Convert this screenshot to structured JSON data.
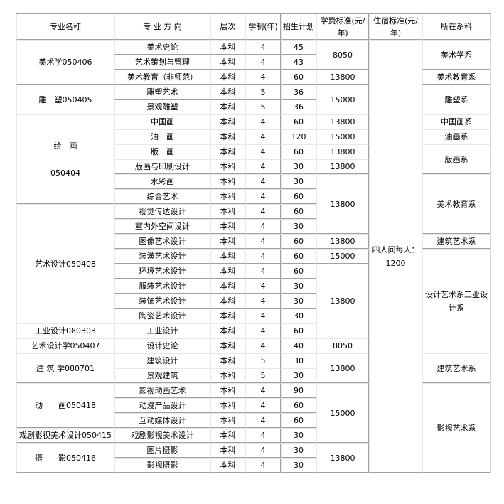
{
  "headers": [
    "专业名称",
    "专 业 方 向",
    "层次",
    "学制(年)",
    "招生计划",
    "学费标准(元/年)",
    "住宿标准(元/年)",
    "所在系科"
  ],
  "rows": [
    [
      {
        "t": "美术学050406",
        "rs": 3
      },
      {
        "t": "美术史论"
      },
      {
        "t": "本科"
      },
      {
        "t": "4"
      },
      {
        "t": "45"
      },
      {
        "t": "8050",
        "rs": 2
      },
      {
        "t": "四人间每人：\n1200",
        "rs": 29
      },
      {
        "t": "美术学系",
        "rs": 2
      }
    ],
    [
      {
        "t": "艺术策划与管理"
      },
      {
        "t": "本科"
      },
      {
        "t": "4"
      },
      {
        "t": "43"
      }
    ],
    [
      {
        "t": "美术教育（非师范）"
      },
      {
        "t": "本科"
      },
      {
        "t": "4"
      },
      {
        "t": "60"
      },
      {
        "t": "13800"
      },
      {
        "t": "美术教育系"
      }
    ],
    [
      {
        "t": "雕　塑050405",
        "rs": 2
      },
      {
        "t": "雕塑艺术"
      },
      {
        "t": "本科"
      },
      {
        "t": "5"
      },
      {
        "t": "36"
      },
      {
        "t": "15000",
        "rs": 2
      },
      {
        "t": "雕塑系",
        "rs": 2
      }
    ],
    [
      {
        "t": "景观雕塑"
      },
      {
        "t": "本科"
      },
      {
        "t": "5"
      },
      {
        "t": "36"
      }
    ],
    [
      {
        "t": "绘　画\n\n050404",
        "rs": 6
      },
      {
        "t": "中国画"
      },
      {
        "t": "本科"
      },
      {
        "t": "4"
      },
      {
        "t": "60"
      },
      {
        "t": "13800"
      },
      {
        "t": "中国画系"
      }
    ],
    [
      {
        "t": "油　画"
      },
      {
        "t": "本科"
      },
      {
        "t": "4"
      },
      {
        "t": "120"
      },
      {
        "t": "15000"
      },
      {
        "t": "油画系"
      }
    ],
    [
      {
        "t": "版　画"
      },
      {
        "t": "本科"
      },
      {
        "t": "4"
      },
      {
        "t": "60"
      },
      {
        "t": "13800"
      },
      {
        "t": "版画系",
        "rs": 2
      }
    ],
    [
      {
        "t": "版画与印刷设计"
      },
      {
        "t": "本科"
      },
      {
        "t": "4"
      },
      {
        "t": "30"
      },
      {
        "t": "13800"
      }
    ],
    [
      {
        "t": "水彩画"
      },
      {
        "t": "本科"
      },
      {
        "t": "4"
      },
      {
        "t": "30"
      },
      {
        "t": "13800",
        "rs": 4
      },
      {
        "t": "美术教育系",
        "rs": 4
      }
    ],
    [
      {
        "t": "综合艺术"
      },
      {
        "t": "本科"
      },
      {
        "t": "4"
      },
      {
        "t": "60"
      }
    ],
    [
      {
        "t": "艺术设计050408",
        "rs": 8
      },
      {
        "t": "视觉传达设计"
      },
      {
        "t": "本科"
      },
      {
        "t": "4"
      },
      {
        "t": "60"
      }
    ],
    [
      {
        "t": "室内外空间设计"
      },
      {
        "t": "本科"
      },
      {
        "t": "4"
      },
      {
        "t": "30"
      }
    ],
    [
      {
        "t": "图像艺术设计"
      },
      {
        "t": "本科"
      },
      {
        "t": "4"
      },
      {
        "t": "60"
      },
      {
        "t": "13800"
      },
      {
        "t": "建筑艺术系"
      }
    ],
    [
      {
        "t": "装潢艺术设计"
      },
      {
        "t": "本科"
      },
      {
        "t": "4"
      },
      {
        "t": "60"
      },
      {
        "t": "15000"
      },
      {
        "t": "设计艺术系工业设计系",
        "rs": 7
      }
    ],
    [
      {
        "t": "环境艺术设计"
      },
      {
        "t": "本科"
      },
      {
        "t": "4"
      },
      {
        "t": "60"
      },
      {
        "t": "13800",
        "rs": 5
      }
    ],
    [
      {
        "t": "服装艺术设计"
      },
      {
        "t": "本科"
      },
      {
        "t": "4"
      },
      {
        "t": "30"
      }
    ],
    [
      {
        "t": "装饰艺术设计"
      },
      {
        "t": "本科"
      },
      {
        "t": "4"
      },
      {
        "t": "30"
      }
    ],
    [
      {
        "t": "陶瓷艺术设计"
      },
      {
        "t": "本科"
      },
      {
        "t": "4"
      },
      {
        "t": "30"
      }
    ],
    [
      {
        "t": "工业设计080303"
      },
      {
        "t": "工业设计"
      },
      {
        "t": "本科"
      },
      {
        "t": "4"
      },
      {
        "t": "60"
      }
    ],
    [
      {
        "t": "艺术设计学050407"
      },
      {
        "t": "设计史论"
      },
      {
        "t": "本科"
      },
      {
        "t": "4"
      },
      {
        "t": "40"
      },
      {
        "t": "8050"
      }
    ],
    [
      {
        "t": "建 筑 学080701",
        "rs": 2
      },
      {
        "t": "建筑设计"
      },
      {
        "t": "本科"
      },
      {
        "t": "5"
      },
      {
        "t": "30"
      },
      {
        "t": "13800",
        "rs": 2
      },
      {
        "t": "建筑艺术系",
        "rs": 2
      }
    ],
    [
      {
        "t": "景观建筑"
      },
      {
        "t": "本科"
      },
      {
        "t": "5"
      },
      {
        "t": "30"
      }
    ],
    [
      {
        "t": "动　　画050418",
        "rs": 3
      },
      {
        "t": "影视动画艺术"
      },
      {
        "t": "本科"
      },
      {
        "t": "4"
      },
      {
        "t": "90"
      },
      {
        "t": "15000",
        "rs": 4
      },
      {
        "t": "影视艺术系",
        "rs": 6
      }
    ],
    [
      {
        "t": "动漫产品设计"
      },
      {
        "t": "本科"
      },
      {
        "t": "4"
      },
      {
        "t": "60"
      }
    ],
    [
      {
        "t": "互动媒体设计"
      },
      {
        "t": "本科"
      },
      {
        "t": "4"
      },
      {
        "t": "60"
      }
    ],
    [
      {
        "t": "戏剧影视美术设计050415"
      },
      {
        "t": "戏剧影视美术设计"
      },
      {
        "t": "本科"
      },
      {
        "t": "4"
      },
      {
        "t": "30"
      }
    ],
    [
      {
        "t": "摄　　影050416",
        "rs": 2
      },
      {
        "t": "图片摄影"
      },
      {
        "t": "本科"
      },
      {
        "t": "4"
      },
      {
        "t": "30"
      },
      {
        "t": "13800",
        "rs": 2
      }
    ],
    [
      {
        "t": "影视摄影"
      },
      {
        "t": "本科"
      },
      {
        "t": "4"
      },
      {
        "t": "30"
      }
    ]
  ]
}
